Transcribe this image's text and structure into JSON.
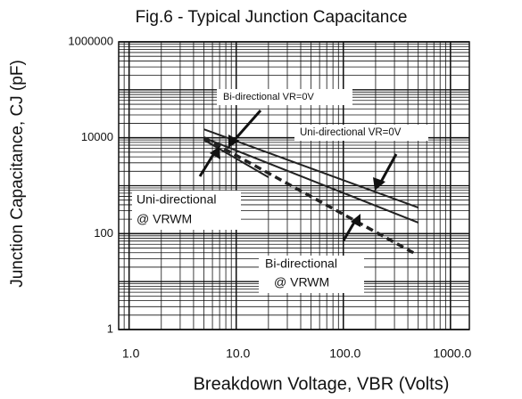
{
  "chart_data": {
    "type": "line",
    "title": "Fig.6 - Typical Junction Capacitance",
    "x_label": "Breakdown Voltage, VBR (Volts)",
    "y_label": "Junction Capacitance, CJ (pF)",
    "log_x": true,
    "log_y": true,
    "grid": true,
    "minor_grid": true,
    "xlim": [
      0.8,
      1500
    ],
    "xticks": [
      {
        "value": 1,
        "label": "1.0"
      },
      {
        "value": 10,
        "label": "10.0"
      },
      {
        "value": 100,
        "label": "100.0"
      },
      {
        "value": 1000,
        "label": "1000.0"
      }
    ],
    "ylim": [
      1,
      1000000
    ],
    "yticks": [
      1,
      100,
      10000,
      1000000
    ],
    "series": [
      {
        "color": "#222222",
        "dash": false,
        "x": [
          5,
          500
        ],
        "values": [
          15000,
          350
        ]
      },
      {
        "color": "#222222",
        "dash": false,
        "x": [
          5,
          500
        ],
        "values": [
          10000,
          170
        ]
      },
      {
        "color": "#222222",
        "dash": false,
        "x": [
          5,
          20
        ],
        "values": [
          9000,
          1500
        ]
      },
      {
        "color": "#222222",
        "dash": true,
        "x": [
          5,
          450
        ],
        "values": [
          10000,
          40
        ]
      }
    ],
    "annotations": [
      {
        "text": "Bi-directional VR=0V"
      },
      {
        "text": "Uni-directional VR=0V"
      },
      {
        "text": "Uni-directional"
      },
      {
        "text": "@ VRWM"
      },
      {
        "text": "Bi-directional"
      },
      {
        "text": "@ VRWM"
      }
    ]
  }
}
